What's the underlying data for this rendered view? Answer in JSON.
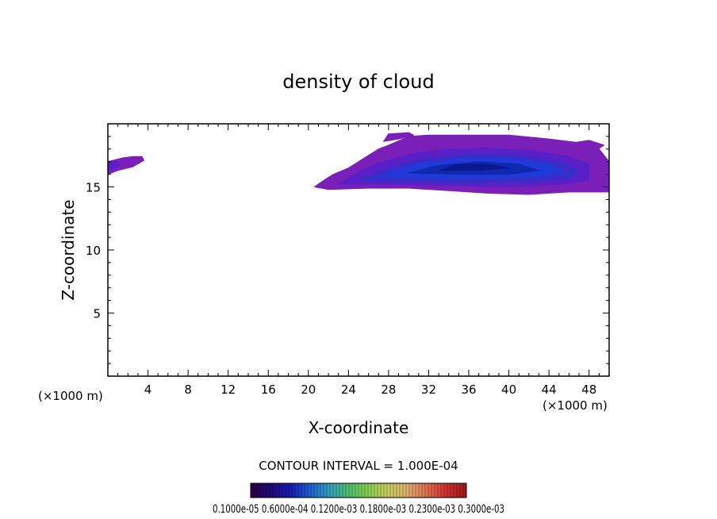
{
  "chart_data": {
    "type": "heatmap",
    "title": "density of cloud",
    "xlabel": "X-coordinate",
    "ylabel": "Z-coordinate",
    "x_unit_left": "(×1000 m)",
    "x_unit_right": "(×1000 m)",
    "xlim": [
      0,
      50
    ],
    "ylim": [
      0,
      20
    ],
    "x_ticks": [
      4,
      8,
      12,
      16,
      20,
      24,
      28,
      32,
      36,
      40,
      44,
      48
    ],
    "y_ticks": [
      5,
      10,
      15
    ],
    "contour_interval_text": "CONTOUR INTERVAL = 1.000E-04",
    "colorbar_labels_text": "0.1000e-05  0.6000e-04  0.1200e-03  0.1800e-03  0.2300e-03  0.3000e-03",
    "colorbar_colors": [
      "#2a0040",
      "#1e0a7a",
      "#1a1ab0",
      "#1f5fd0",
      "#33a0c0",
      "#4cc070",
      "#8ad050",
      "#c8d060",
      "#e0b070",
      "#e07050",
      "#d03030",
      "#a01818"
    ],
    "cloud_regions": [
      {
        "name": "main cloud",
        "layers": [
          {
            "level": 1,
            "color": "#7a1fb8",
            "x": [
              20.6,
              22,
              26,
              30,
              34,
              38,
              42,
              46,
              48,
              50,
              50,
              48.5,
              47,
              44,
              40,
              36,
              32,
              30,
              28,
              27,
              26,
              25,
              24,
              22.5,
              21.5
            ],
            "z": [
              15.0,
              14.8,
              14.9,
              14.9,
              14.7,
              14.5,
              14.4,
              14.6,
              14.6,
              14.6,
              17.0,
              18.5,
              18.5,
              18.8,
              19.1,
              19.1,
              19.1,
              19.0,
              18.3,
              18.0,
              17.5,
              17.0,
              16.5,
              16.0,
              15.5
            ]
          },
          {
            "level": 2,
            "color": "#5a20c8",
            "x": [
              23,
              28,
              34,
              40,
              45,
              48,
              48,
              46,
              42,
              38,
              34,
              30,
              27,
              25
            ],
            "z": [
              15.2,
              15.2,
              15.1,
              15.0,
              15.2,
              15.5,
              16.8,
              17.4,
              17.9,
              18.1,
              18.0,
              17.6,
              16.9,
              16.2
            ]
          },
          {
            "level": 3,
            "color": "#3a2cc8",
            "x": [
              25,
              30,
              36,
              42,
              46,
              47,
              45,
              41,
              36,
              31,
              28
            ],
            "z": [
              15.5,
              15.4,
              15.3,
              15.4,
              15.7,
              16.3,
              17.0,
              17.5,
              17.6,
              17.2,
              16.5
            ]
          },
          {
            "level": 4,
            "color": "#1e3ad8",
            "x": [
              27,
              32,
              38,
              43,
              45.5,
              44,
              40,
              35,
              31
            ],
            "z": [
              15.8,
              15.7,
              15.7,
              15.8,
              16.2,
              16.8,
              17.2,
              17.2,
              16.8
            ]
          },
          {
            "level": 5,
            "color": "#1028b0",
            "x": [
              30,
              35,
              40,
              43,
              41,
              37,
              33
            ],
            "z": [
              16.1,
              16.0,
              16.0,
              16.3,
              16.8,
              17.0,
              16.7
            ]
          },
          {
            "level": 6,
            "color": "#0a1890",
            "x": [
              33,
              37,
              40,
              38,
              35
            ],
            "z": [
              16.3,
              16.3,
              16.5,
              16.8,
              16.8
            ]
          }
        ]
      },
      {
        "name": "left edge cloud",
        "layers": [
          {
            "level": 1,
            "color": "#7a1fb8",
            "x": [
              0,
              1,
              2.5,
              3.6,
              3.4,
              2.5,
              1.5,
              0
            ],
            "z": [
              16.0,
              16.3,
              16.6,
              17.1,
              17.4,
              17.4,
              17.3,
              17.0
            ]
          },
          {
            "level": 2,
            "color": "#5a20c8",
            "x": [
              0,
              1.2,
              0.8,
              0
            ],
            "z": [
              16.3,
              16.7,
              17.0,
              16.9
            ]
          }
        ]
      },
      {
        "name": "upper wisps",
        "layers": [
          {
            "level": 1,
            "color": "#7a1fb8",
            "x": [
              27.5,
              29,
              30.5,
              30,
              28
            ],
            "z": [
              18.6,
              18.8,
              19.1,
              19.3,
              19.2
            ]
          },
          {
            "level": 1,
            "color": "#7a1fb8",
            "x": [
              46,
              48.5,
              49.5,
              48,
              46.5
            ],
            "z": [
              17.9,
              17.8,
              18.3,
              18.7,
              18.5
            ]
          }
        ]
      }
    ]
  }
}
